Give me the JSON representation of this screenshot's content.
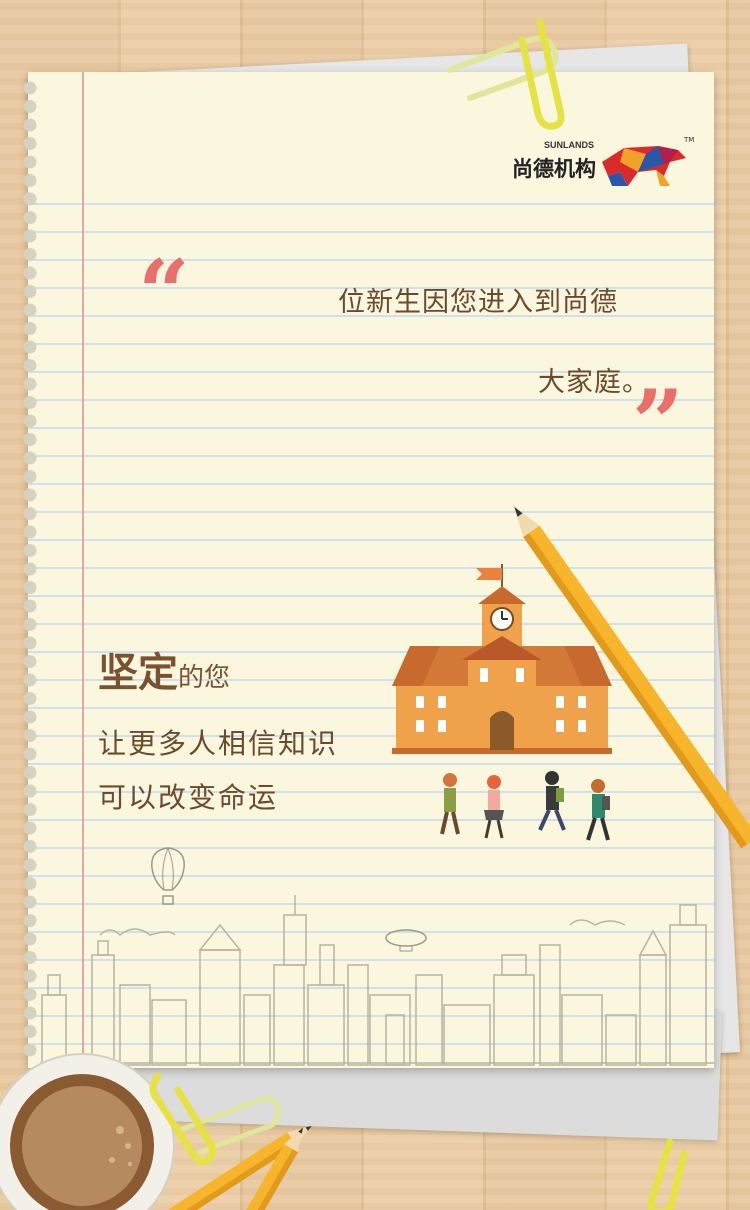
{
  "logo": {
    "en": "SUNLANDS",
    "cn": "尚德机构",
    "tm": "TM"
  },
  "quote": {
    "open": "“",
    "close": "”",
    "line1": "位新生因您进入到尚德",
    "line2": "大家庭。"
  },
  "heading": {
    "big": "坚定",
    "small": "的您"
  },
  "body": {
    "line1": "让更多人相信知识",
    "line2": "可以改变命运"
  },
  "icons": [
    "bull-icon",
    "paperclip-icon",
    "pencil-icon",
    "school-icon",
    "clock-icon",
    "flag-icon",
    "student-icon",
    "hot-air-balloon-icon",
    "airship-icon",
    "coffee-cup-icon",
    "cityscape-icon"
  ],
  "colors": {
    "quote": "#ea6f6c",
    "text": "#6b4a2e",
    "paper": "#fbf7df",
    "pencil": "#f6b52b",
    "school": "#e6913a"
  }
}
